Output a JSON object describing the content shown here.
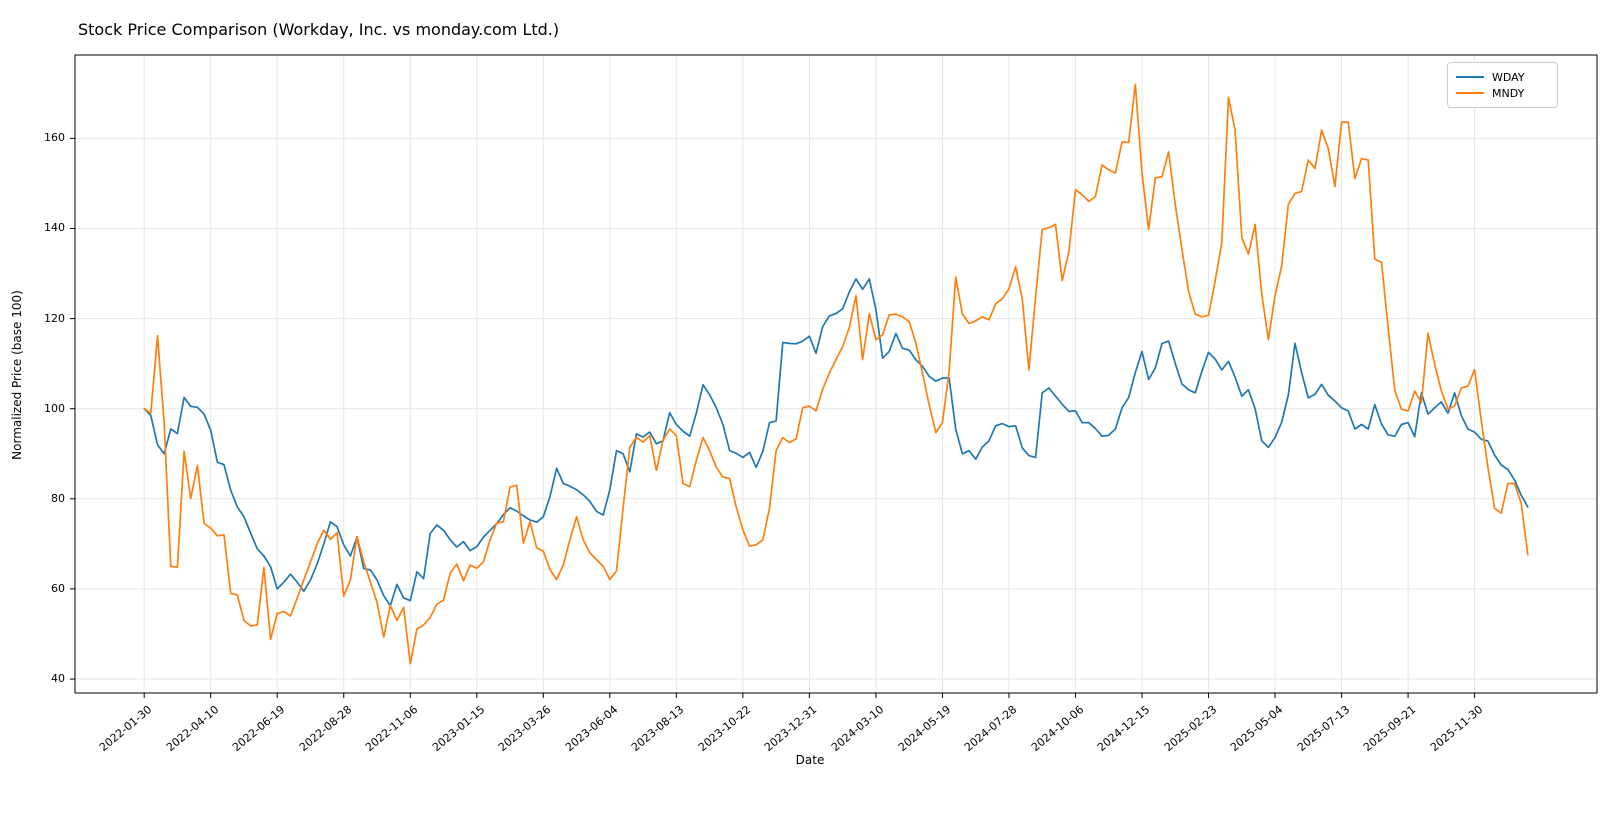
{
  "title": "Stock Price Comparison (Workday, Inc. vs monday.com Ltd.)",
  "legend": {
    "entries": [
      {
        "label": "WDAY",
        "color": "#1f77b4"
      },
      {
        "label": "MNDY",
        "color": "#ff7f0e"
      }
    ]
  },
  "chart_data": {
    "type": "line",
    "title": "Stock Price Comparison (Workday, Inc. vs monday.com Ltd.)",
    "xlabel": "Date",
    "ylabel": "Normalized Price (base 100)",
    "x_start_date": "2022-01-30",
    "x_step_days": 7,
    "n_points": 209,
    "x_tick_every": 10,
    "x_tick_labels": [
      "2022-01-30",
      "2022-04-10",
      "2022-06-19",
      "2022-08-28",
      "2022-11-06",
      "2023-01-15",
      "2023-03-26",
      "2023-06-04",
      "2023-08-13",
      "2023-10-22",
      "2023-12-31",
      "2024-03-10",
      "2024-05-19",
      "2024-07-28",
      "2024-10-06",
      "2024-12-15",
      "2025-02-23",
      "2025-05-04",
      "2025-07-13",
      "2025-09-21",
      "2025-11-30"
    ],
    "y_ticks": [
      40,
      60,
      80,
      100,
      120,
      140,
      160
    ],
    "ylim": [
      36.9,
      178.5
    ],
    "grid": true,
    "legend_position": "upper right",
    "series": [
      {
        "name": "WDAY",
        "color": "#1f77b4",
        "values": [
          100,
          98.5,
          92,
          90,
          95.5,
          94.5,
          102.5,
          100.5,
          100.3,
          98.8,
          95.2,
          88.1,
          87.6,
          81.9,
          78.2,
          76,
          72.4,
          68.9,
          67.3,
          64.9,
          60,
          61.5,
          63.3,
          61.5,
          59.5,
          62,
          65.5,
          70,
          74.9,
          73.8,
          69.8,
          67.3,
          71.5,
          64.5,
          64.2,
          62,
          58.5,
          56.3,
          61,
          58,
          57.4,
          63.8,
          62.3,
          72.3,
          74.2,
          73,
          70.9,
          69.3,
          70.5,
          68.5,
          69.4,
          71.5,
          73,
          74.5,
          76.5,
          78,
          77.3,
          76.2,
          75.3,
          74.8,
          76,
          80.5,
          86.8,
          83.4,
          82.8,
          82,
          80.9,
          79.4,
          77.2,
          76.4,
          82,
          90.7,
          90,
          86,
          94.4,
          93.7,
          94.8,
          92.2,
          92.9,
          99.1,
          96.5,
          95,
          93.9,
          99,
          105.3,
          103.1,
          100.2,
          96.5,
          90.7,
          90.1,
          89.2,
          90.3,
          87,
          90.5,
          96.9,
          97.3,
          114.7,
          114.5,
          114.4,
          115,
          116.1,
          112.3,
          118.2,
          120.6,
          121.1,
          122.2,
          125.9,
          128.8,
          126.5,
          128.8,
          122,
          111.2,
          112.7,
          116.7,
          113.4,
          113,
          110.9,
          109.4,
          107.2,
          106.1,
          106.8,
          106.8,
          95.5,
          90,
          90.7,
          88.8,
          91.5,
          92.9,
          96.2,
          96.7,
          96,
          96.2,
          91.3,
          89.6,
          89.2,
          103.5,
          104.6,
          102.8,
          101,
          99.4,
          99.5,
          96.9,
          96.9,
          95.6,
          93.9,
          94.1,
          95.5,
          100.2,
          102.5,
          108,
          112.7,
          106.5,
          109,
          114.5,
          115,
          110,
          105.5,
          104.2,
          103.5,
          108.3,
          112.5,
          111,
          108.6,
          110.5,
          107,
          102.8,
          104.2,
          100,
          92.9,
          91.4,
          93.6,
          97,
          103,
          114.5,
          108,
          102.4,
          103.2,
          105.4,
          103,
          101.7,
          100.2,
          99.5,
          95.5,
          96.5,
          95.5,
          100.9,
          96.6,
          94.2,
          93.9,
          96.5,
          96.9,
          93.8,
          103.5,
          98.8,
          100.2,
          101.5,
          99,
          103.5,
          98.5,
          95.5,
          94.8,
          93.2,
          92.8,
          89.7,
          87.5,
          86.5,
          84.2,
          80.8,
          78.2
        ]
      },
      {
        "name": "MNDY",
        "color": "#ff7f0e",
        "values": [
          100,
          99,
          116.2,
          97,
          65,
          64.8,
          90.5,
          80.1,
          87.4,
          74.5,
          73.5,
          71.8,
          72,
          59,
          58.7,
          53,
          51.8,
          52,
          64.8,
          48.8,
          54.5,
          55,
          54,
          58,
          62,
          66,
          70,
          73,
          71,
          72.5,
          58.4,
          62,
          71.6,
          66,
          61.5,
          57,
          49.3,
          56.3,
          53,
          55.9,
          43.4,
          51.1,
          52,
          53.7,
          56.6,
          57.5,
          63.5,
          65.5,
          61.8,
          65.3,
          64.6,
          66,
          70.9,
          74.6,
          74.9,
          82.6,
          83,
          70.2,
          74.9,
          69.1,
          68.4,
          64.3,
          62.1,
          65.3,
          70.9,
          76,
          70.9,
          68,
          66.5,
          65,
          62.1,
          64,
          78,
          91.4,
          93.6,
          92.6,
          94,
          86.3,
          93,
          95.5,
          94,
          83.4,
          82.7,
          88.5,
          93.6,
          90.7,
          87,
          84.8,
          84.5,
          78.2,
          73.1,
          69.5,
          69.8,
          70.9,
          77.9,
          90.7,
          93.6,
          92.5,
          93.3,
          100.2,
          100.6,
          99.5,
          104.3,
          107.9,
          110.9,
          113.8,
          118,
          125.1,
          110.9,
          121.1,
          115.3,
          116.4,
          120.8,
          121,
          120.4,
          119.3,
          114.6,
          107.9,
          100.9,
          94.7,
          96.9,
          108.2,
          129.2,
          121,
          118.9,
          119.5,
          120.4,
          119.7,
          123.3,
          124.4,
          126.6,
          131.5,
          124.3,
          108.6,
          124.8,
          139.8,
          140.2,
          140.9,
          128.4,
          134.7,
          148.6,
          147.5,
          146,
          147.1,
          154.1,
          153,
          152.3,
          159.2,
          159.1,
          172,
          152.3,
          139.8,
          151.2,
          151.5,
          157,
          145.3,
          135.4,
          126,
          121,
          120.4,
          120.7,
          128.4,
          136.9,
          169.1,
          161.8,
          138,
          134.3,
          140.9,
          125.5,
          115.3,
          125.1,
          131.7,
          145.3,
          147.8,
          148.2,
          155.2,
          153.3,
          161.8,
          157.7,
          149.3,
          163.6,
          163.6,
          151.1,
          155.5,
          155.2,
          133.2,
          132.5,
          118,
          104,
          99.9,
          99.5,
          103.9,
          101.3,
          116.7,
          109.8,
          104,
          99.9,
          100.6,
          104.6,
          105,
          108.7,
          97.3,
          87,
          77.9,
          76.8,
          83.4,
          83.4,
          79,
          67.6
        ]
      }
    ]
  },
  "colors": {
    "grid": "#e6e6e6",
    "spine": "#000000",
    "background": "#ffffff"
  }
}
